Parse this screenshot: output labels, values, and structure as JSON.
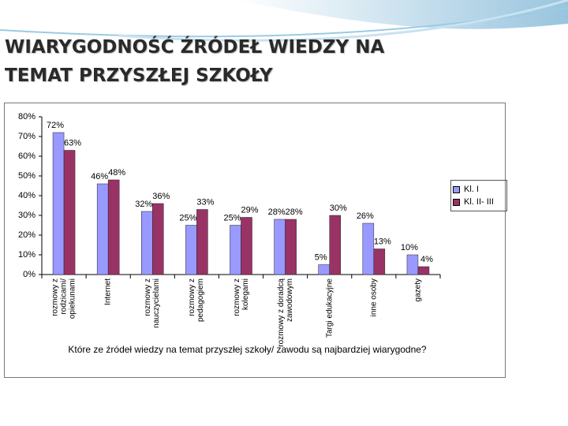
{
  "chart_data": {
    "type": "bar",
    "title": "WIARYGODNOŚĆ ŹRÓDEŁ WIEDZY NA TEMAT PRZYSZŁEJ SZKOŁY",
    "x_label": "Które ze źródeł wiedzy na temat przyszłej szkoły/ zawodu są najbardziej wiarygodne?",
    "categories": [
      "rozmowy z rodzicami/ opiekunami",
      "Internet",
      "rozmowy z nauczycielami",
      "rozmowy z pedagogiem",
      "rozmowy z kolegami",
      "rozmowy z doradcą zawodowym",
      "Targi edukacyjne",
      "inne osoby",
      "gazety"
    ],
    "series": [
      {
        "name": "Kl. I",
        "color": "#9999ff",
        "values": [
          72,
          46,
          32,
          25,
          25,
          28,
          5,
          26,
          10
        ],
        "value_labels": [
          "72%",
          "46%",
          "32%",
          "25%",
          "25%",
          "28%",
          "5%",
          "26%",
          "10%"
        ]
      },
      {
        "name": "Kl. II- III",
        "color": "#993366",
        "values": [
          63,
          48,
          36,
          33,
          29,
          28,
          30,
          13,
          4
        ],
        "value_labels": [
          "63%",
          "48%",
          "36%",
          "33%",
          "29%",
          "28%",
          "30%",
          "13%",
          "4%"
        ]
      }
    ],
    "ylim": [
      0,
      80
    ],
    "yticks": [
      {
        "value": 0,
        "label": "0%"
      },
      {
        "value": 10,
        "label": "10%"
      },
      {
        "value": 20,
        "label": "20%"
      },
      {
        "value": 30,
        "label": "30%"
      },
      {
        "value": 40,
        "label": "40%"
      },
      {
        "value": 50,
        "label": "50%"
      },
      {
        "value": 60,
        "label": "60%"
      },
      {
        "value": 70,
        "label": "70%"
      },
      {
        "value": 80,
        "label": "80%"
      }
    ],
    "grid": false,
    "legend": "right"
  }
}
